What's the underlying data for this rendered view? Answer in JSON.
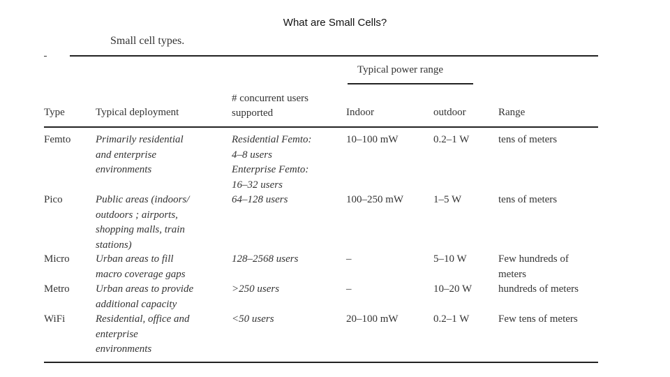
{
  "slide_title": "What are Small Cells?",
  "caption": "Small cell types.",
  "table": {
    "group_header": "Typical power range",
    "headers": {
      "type": "Type",
      "deployment": "Typical deployment",
      "users": "# concurrent users\nsupported",
      "indoor": "Indoor",
      "outdoor": "outdoor",
      "range": "Range"
    },
    "rows": [
      {
        "type": "Femto",
        "deployment": "Primarily residential\nand enterprise\nenvironments",
        "users": "Residential Femto:\n4–8 users\nEnterprise Femto:\n16–32 users",
        "indoor": "10–100 mW",
        "outdoor": "0.2–1 W",
        "range": "tens of meters"
      },
      {
        "type": "Pico",
        "deployment": "Public areas (indoors/\noutdoors ; airports,\nshopping malls, train\nstations)",
        "users": "64–128 users",
        "indoor": "100–250 mW",
        "outdoor": "1–5 W",
        "range": "tens of meters"
      },
      {
        "type": "Micro",
        "deployment": "Urban areas to fill\nmacro coverage gaps",
        "users": "128–2568 users",
        "indoor": "–",
        "outdoor": "5–10 W",
        "range": "Few hundreds of\nmeters"
      },
      {
        "type": "Metro",
        "deployment": "Urban areas to provide\nadditional capacity",
        "users": ">250 users",
        "indoor": "–",
        "outdoor": "10–20 W",
        "range": "hundreds of meters"
      },
      {
        "type": "WiFi",
        "deployment": "Residential, office and\nenterprise\nenvironments",
        "users": "<50 users",
        "indoor": "20–100 mW",
        "outdoor": "0.2–1 W",
        "range": "Few tens of meters"
      }
    ]
  }
}
